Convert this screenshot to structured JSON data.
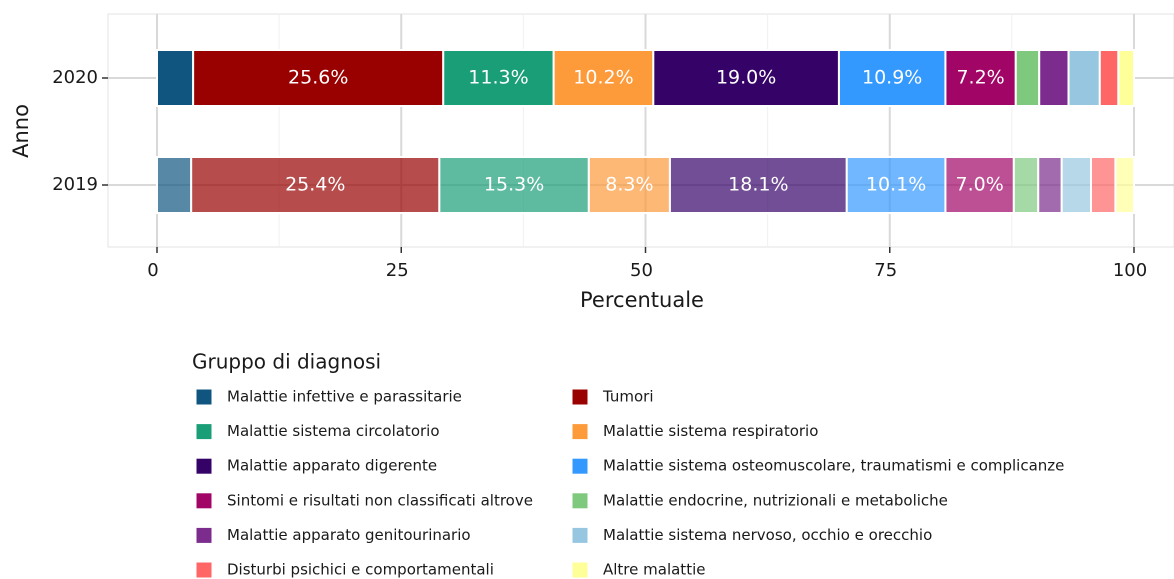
{
  "chart_data": {
    "type": "stacked_barh",
    "categories": [
      "2019",
      "2020"
    ],
    "category_opacity": [
      0.7,
      1
    ],
    "xlabel": "Percentuale",
    "ylabel": "Anno",
    "xlim": [
      0,
      100
    ],
    "xticks": [
      0,
      25,
      50,
      75,
      100
    ],
    "grid": true,
    "legend_title": "Gruppo di diagnosi",
    "legend": "bottom",
    "series": [
      {
        "name": "Malattie infettive e parassitarie",
        "color": "#0f5580",
        "values": [
          3.5,
          3.7
        ],
        "value_labels": [
          null,
          null
        ]
      },
      {
        "name": "Tumori",
        "color": "#990000",
        "values": [
          25.4,
          25.6
        ],
        "value_labels": [
          "25.4%",
          "25.6%"
        ]
      },
      {
        "name": "Malattie sistema circolatorio",
        "color": "#1a9e77",
        "values": [
          15.3,
          11.3
        ],
        "value_labels": [
          "15.3%",
          "11.3%"
        ]
      },
      {
        "name": "Malattie sistema respiratorio",
        "color": "#fd9a3a",
        "values": [
          8.3,
          10.2
        ],
        "value_labels": [
          "8.3%",
          "10.2%"
        ]
      },
      {
        "name": "Malattie apparato digerente",
        "color": "#350368",
        "values": [
          18.1,
          19.0
        ],
        "value_labels": [
          "18.1%",
          "19.0%"
        ]
      },
      {
        "name": "Malattie sistema osteomuscolare, traumatismi e complicanze",
        "color": "#3399ff",
        "values": [
          10.1,
          10.9
        ],
        "value_labels": [
          "10.1%",
          "10.9%"
        ]
      },
      {
        "name": "Sintomi e risultati non classificati altrove",
        "color": "#a10666",
        "values": [
          7.0,
          7.2
        ],
        "value_labels": [
          "7.0%",
          "7.2%"
        ]
      },
      {
        "name": "Malattie endocrine, nutrizionali e metaboliche",
        "color": "#7fc97f",
        "values": [
          2.5,
          2.4
        ],
        "value_labels": [
          null,
          null
        ]
      },
      {
        "name": "Malattie apparato genitourinario",
        "color": "#7b2c8c",
        "values": [
          2.4,
          3.0
        ],
        "value_labels": [
          null,
          null
        ]
      },
      {
        "name": "Malattie sistema nervoso, occhio e orecchio",
        "color": "#97c7e0",
        "values": [
          3.0,
          3.2
        ],
        "value_labels": [
          null,
          null
        ]
      },
      {
        "name": "Disturbi psichici e comportamentali",
        "color": "#ff6666",
        "values": [
          2.5,
          1.9
        ],
        "value_labels": [
          null,
          null
        ]
      },
      {
        "name": "Altre malattie",
        "color": "#ffff99",
        "values": [
          1.9,
          1.6
        ],
        "value_labels": [
          null,
          null
        ]
      }
    ]
  }
}
